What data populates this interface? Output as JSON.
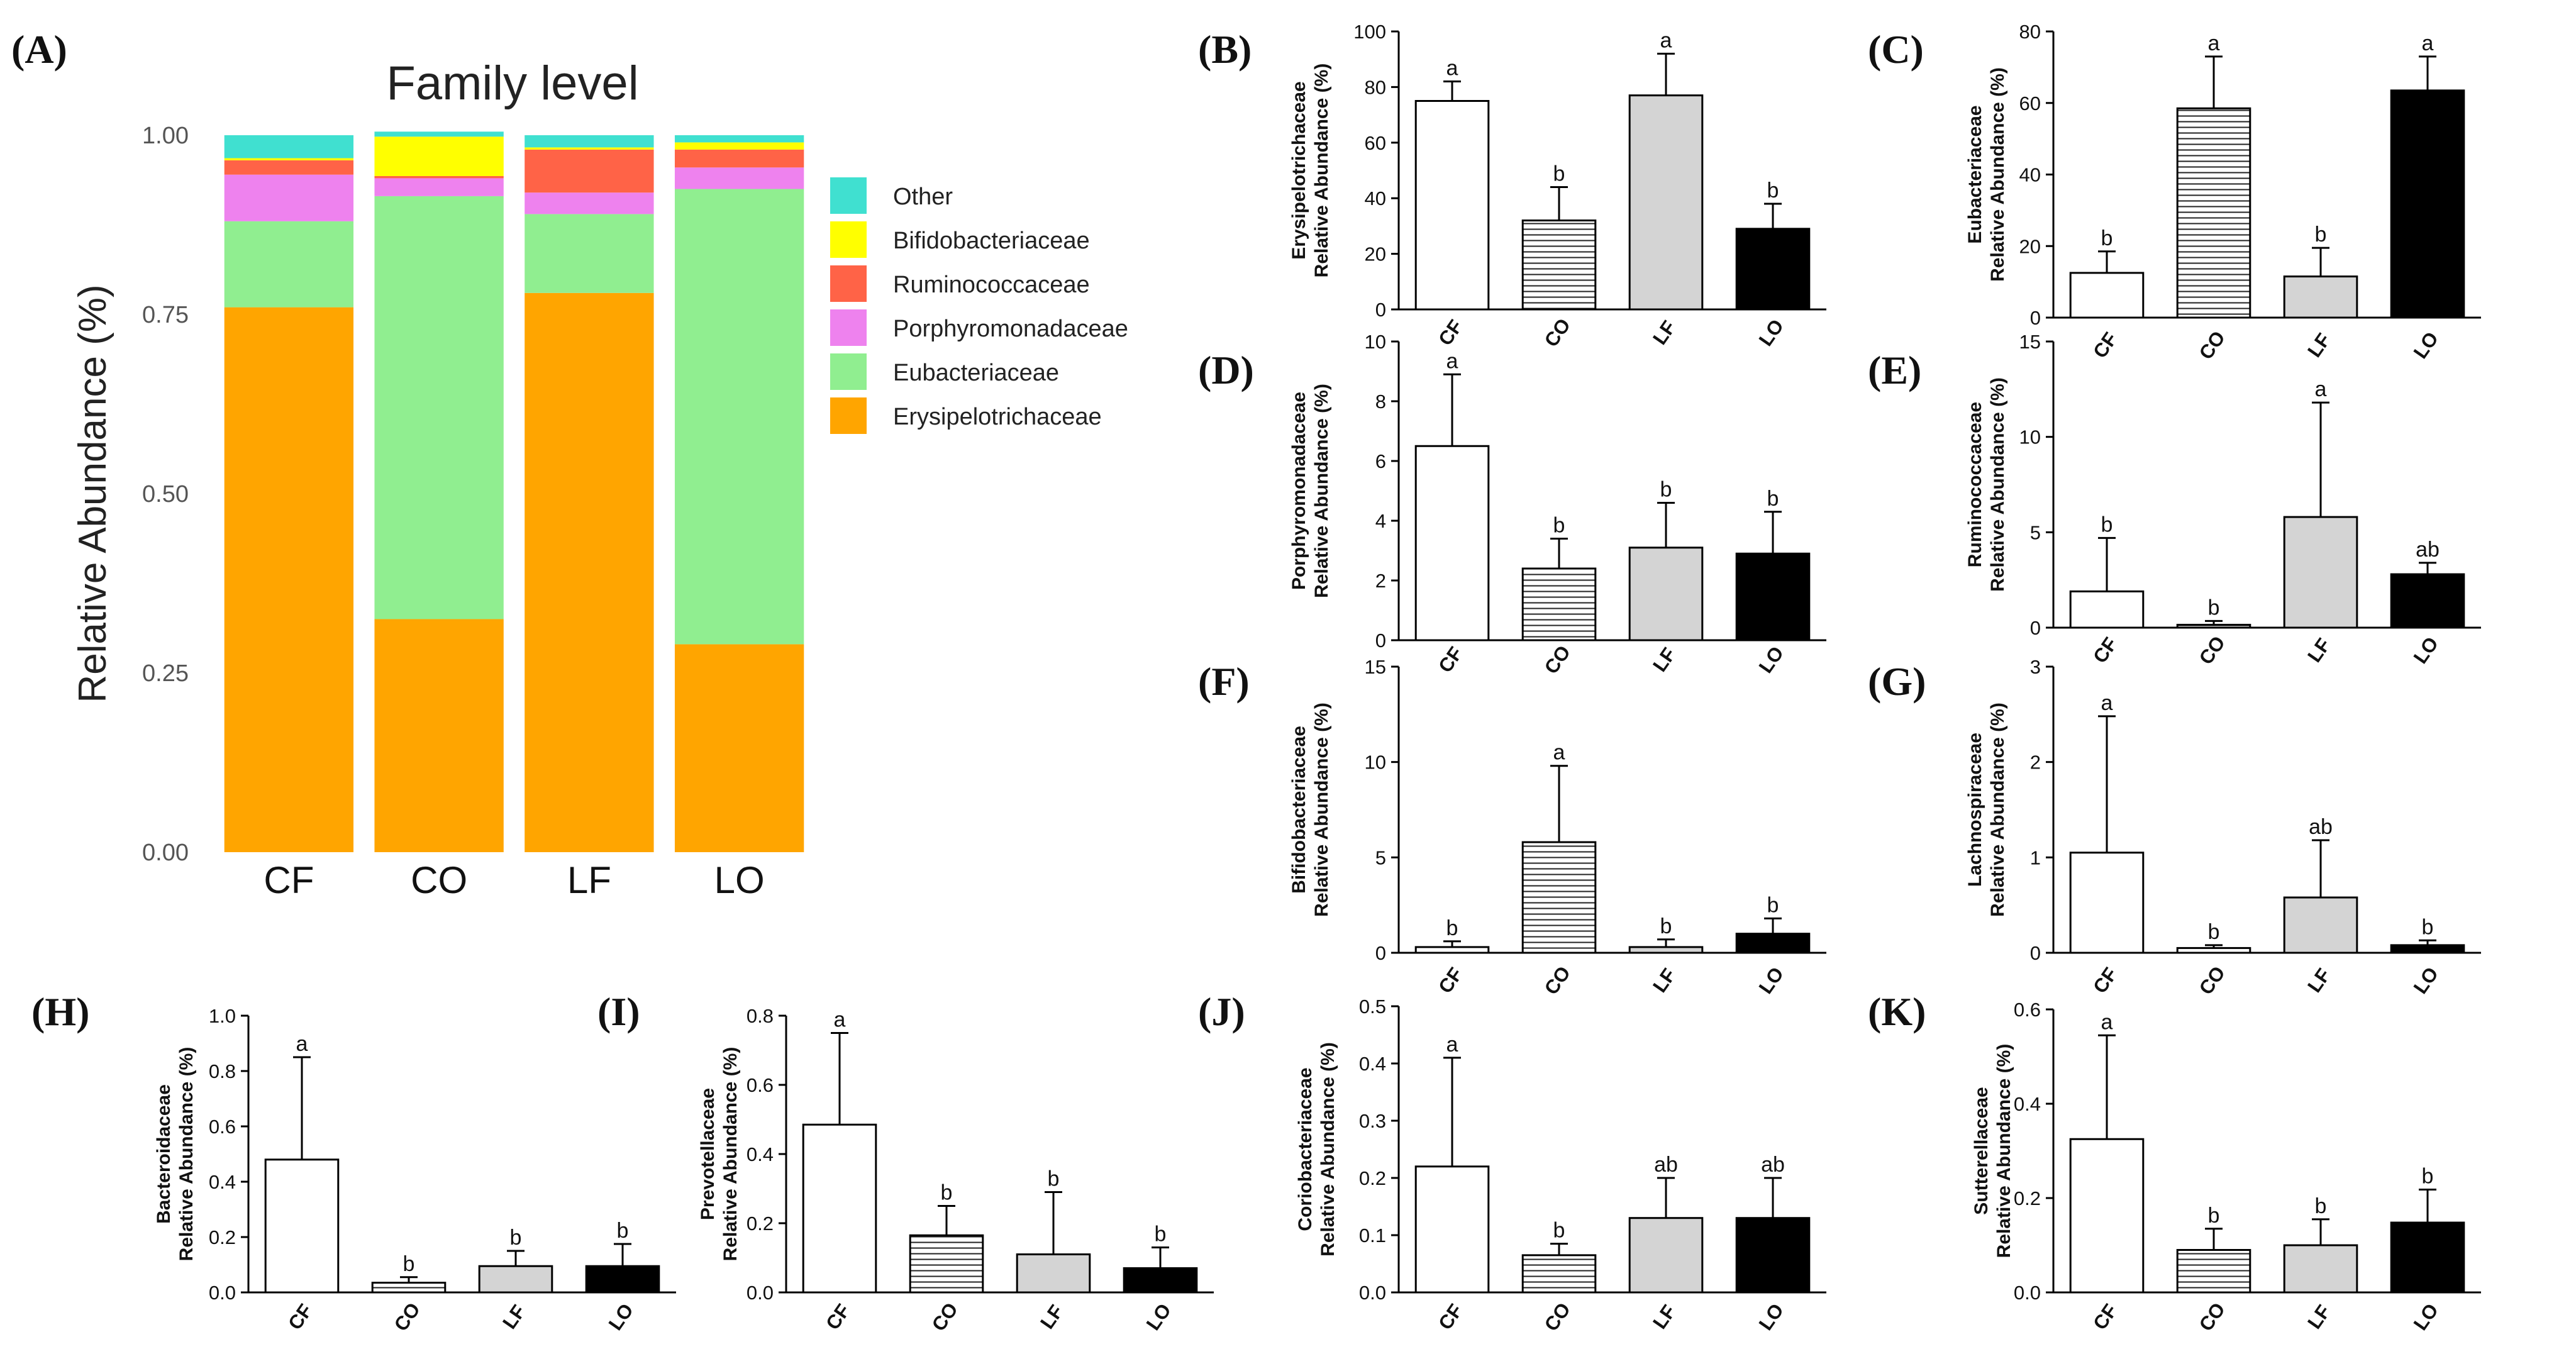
{
  "figure": {
    "panel_a": {
      "letter": "(A)",
      "chart_data": {
        "type": "bar",
        "stacked": true,
        "title": "Family level",
        "ylabel": "Relative Abundance (%)",
        "xlabel": "",
        "ylim": [
          0,
          1
        ],
        "yticks": [
          "0.00",
          "0.25",
          "0.50",
          "0.75",
          "1.00"
        ],
        "categories": [
          "CF",
          "CO",
          "LF",
          "LO"
        ],
        "series": [
          {
            "name": "Erysipelotrichaceae",
            "color": "#FFA500",
            "values": [
              0.76,
              0.325,
              0.78,
              0.29
            ]
          },
          {
            "name": "Eubacteriaceae",
            "color": "#90EE90",
            "values": [
              0.12,
              0.59,
              0.11,
              0.635
            ]
          },
          {
            "name": "Porphyromonadaceae",
            "color": "#EE82EE",
            "values": [
              0.065,
              0.025,
              0.03,
              0.03
            ]
          },
          {
            "name": "Ruminococcaceae",
            "color": "#FF6347",
            "values": [
              0.02,
              0.003,
              0.06,
              0.025
            ]
          },
          {
            "name": "Bifidobacteriaceae",
            "color": "#FFFF00",
            "values": [
              0.003,
              0.055,
              0.003,
              0.01
            ]
          },
          {
            "name": "Other",
            "color": "#40E0D0",
            "values": [
              0.032,
              0.007,
              0.017,
              0.01
            ]
          }
        ],
        "legend": [
          "Other",
          "Bifidobacteriaceae",
          "Ruminococcaceae",
          "Porphyromonadaceae",
          "Eubacteriaceae",
          "Erysipelotrichaceae"
        ],
        "legend_position": "right"
      }
    },
    "bar_panels": [
      {
        "letter": "(B)",
        "chart_data": {
          "type": "bar",
          "title": "",
          "ylabel_line1": "Erysipelotrichaceae",
          "ylabel_line2": "Relative Abundance (%)",
          "ylim": [
            0,
            100
          ],
          "yticks": [
            "0",
            "20",
            "40",
            "60",
            "80",
            "100"
          ],
          "categories": [
            "CF",
            "CO",
            "LF",
            "LO"
          ],
          "values": [
            75,
            32,
            77,
            29
          ],
          "errors": [
            7,
            12,
            15,
            9
          ],
          "letters": [
            "a",
            "b",
            "a",
            "b"
          ]
        }
      },
      {
        "letter": "(C)",
        "chart_data": {
          "type": "bar",
          "title": "",
          "ylabel_line1": "Eubacteriaceae",
          "ylabel_line2": "Relative Abundance (%)",
          "ylim": [
            0,
            80
          ],
          "yticks": [
            "0",
            "20",
            "40",
            "60",
            "80"
          ],
          "categories": [
            "CF",
            "CO",
            "LF",
            "LO"
          ],
          "values": [
            12.5,
            58.5,
            11.5,
            63.5
          ],
          "errors": [
            6,
            14.5,
            8,
            9.5
          ],
          "letters": [
            "b",
            "a",
            "b",
            "a"
          ]
        }
      },
      {
        "letter": "(D)",
        "chart_data": {
          "type": "bar",
          "title": "",
          "ylabel_line1": "Porphyromonadaceae",
          "ylabel_line2": "Relative Abundance (%)",
          "ylim": [
            0,
            10
          ],
          "yticks": [
            "0",
            "2",
            "4",
            "6",
            "8",
            "10"
          ],
          "categories": [
            "CF",
            "CO",
            "LF",
            "LO"
          ],
          "values": [
            6.5,
            2.4,
            3.1,
            2.9
          ],
          "errors": [
            2.4,
            1.0,
            1.5,
            1.4
          ],
          "letters": [
            "a",
            "b",
            "b",
            "b"
          ]
        }
      },
      {
        "letter": "(E)",
        "chart_data": {
          "type": "bar",
          "title": "",
          "ylabel_line1": "Ruminococcaceae",
          "ylabel_line2": "Relative Abundance (%)",
          "ylim": [
            0,
            15
          ],
          "yticks": [
            "0",
            "5",
            "10",
            "15"
          ],
          "categories": [
            "CF",
            "CO",
            "LF",
            "LO"
          ],
          "values": [
            1.9,
            0.15,
            5.8,
            2.8
          ],
          "errors": [
            2.8,
            0.2,
            6.0,
            0.6
          ],
          "letters": [
            "b",
            "b",
            "a",
            "ab"
          ]
        }
      },
      {
        "letter": "(F)",
        "chart_data": {
          "type": "bar",
          "title": "",
          "ylabel_line1": "Bifidobacteriaceae",
          "ylabel_line2": "Relative Abundance (%)",
          "ylim": [
            0,
            15
          ],
          "yticks": [
            "0",
            "5",
            "10",
            "15"
          ],
          "categories": [
            "CF",
            "CO",
            "LF",
            "LO"
          ],
          "values": [
            0.3,
            5.8,
            0.3,
            1.0
          ],
          "errors": [
            0.3,
            4.0,
            0.4,
            0.8
          ],
          "letters": [
            "b",
            "a",
            "b",
            "b"
          ]
        }
      },
      {
        "letter": "(G)",
        "chart_data": {
          "type": "bar",
          "title": "",
          "ylabel_line1": "Lachnospiraceae",
          "ylabel_line2": "Relative Abundance (%)",
          "ylim": [
            0,
            3
          ],
          "yticks": [
            "0",
            "1",
            "2",
            "3"
          ],
          "categories": [
            "CF",
            "CO",
            "LF",
            "LO"
          ],
          "values": [
            1.05,
            0.05,
            0.58,
            0.08
          ],
          "errors": [
            1.43,
            0.03,
            0.6,
            0.05
          ],
          "letters": [
            "a",
            "b",
            "ab",
            "b"
          ]
        }
      },
      {
        "letter": "(H)",
        "chart_data": {
          "type": "bar",
          "title": "",
          "ylabel_line1": "Bacteroidaceae",
          "ylabel_line2": "Relative Abundance (%)",
          "ylim": [
            0,
            1.0
          ],
          "yticks": [
            "0.0",
            "0.2",
            "0.4",
            "0.6",
            "0.8",
            "1.0"
          ],
          "categories": [
            "CF",
            "CO",
            "LF",
            "LO"
          ],
          "values": [
            0.48,
            0.035,
            0.095,
            0.095
          ],
          "errors": [
            0.37,
            0.02,
            0.055,
            0.08
          ],
          "letters": [
            "a",
            "b",
            "b",
            "b"
          ]
        }
      },
      {
        "letter": "(I)",
        "chart_data": {
          "type": "bar",
          "title": "",
          "ylabel_line1": "Prevotellaceae",
          "ylabel_line2": "Relative Abundance (%)",
          "ylim": [
            0,
            0.8
          ],
          "yticks": [
            "0.0",
            "0.2",
            "0.4",
            "0.6",
            "0.8"
          ],
          "categories": [
            "CF",
            "CO",
            "LF",
            "LO"
          ],
          "values": [
            0.485,
            0.165,
            0.11,
            0.07
          ],
          "errors": [
            0.265,
            0.085,
            0.18,
            0.06
          ],
          "letters": [
            "a",
            "b",
            "b",
            "b"
          ]
        }
      },
      {
        "letter": "(J)",
        "chart_data": {
          "type": "bar",
          "title": "",
          "ylabel_line1": "Coriobacteriaceae",
          "ylabel_line2": "Relative Abundance (%)",
          "ylim": [
            0,
            0.5
          ],
          "yticks": [
            "0.0",
            "0.1",
            "0.2",
            "0.3",
            "0.4",
            "0.5"
          ],
          "categories": [
            "CF",
            "CO",
            "LF",
            "LO"
          ],
          "values": [
            0.22,
            0.065,
            0.13,
            0.13
          ],
          "errors": [
            0.19,
            0.02,
            0.07,
            0.07
          ],
          "letters": [
            "a",
            "b",
            "ab",
            "ab"
          ]
        }
      },
      {
        "letter": "(K)",
        "chart_data": {
          "type": "bar",
          "title": "",
          "ylabel_line1": "Sutterellaceae",
          "ylabel_line2": "Relative Abundance (%)",
          "ylim": [
            0,
            0.6
          ],
          "yticks": [
            "0.0",
            "0.2",
            "0.4",
            "0.6"
          ],
          "categories": [
            "CF",
            "CO",
            "LF",
            "LO"
          ],
          "values": [
            0.325,
            0.09,
            0.1,
            0.148
          ],
          "errors": [
            0.22,
            0.045,
            0.055,
            0.07
          ],
          "letters": [
            "a",
            "b",
            "b",
            "b"
          ]
        }
      }
    ],
    "bar_styles": [
      "white",
      "hlines",
      "gray",
      "black"
    ]
  }
}
